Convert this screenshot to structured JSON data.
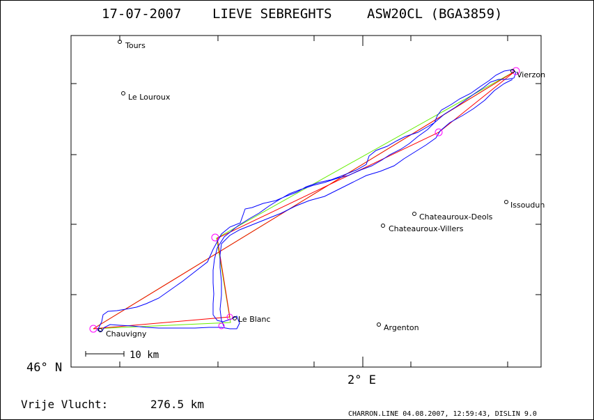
{
  "header": {
    "date": "17-07-2007",
    "pilot": "LIEVE SEBREGHTS",
    "glider": "ASW20CL (BGA3859)"
  },
  "axes": {
    "y_label": "46° N",
    "x_label": "2° E"
  },
  "scale_bar": {
    "label": "10 km"
  },
  "footer": {
    "distance_label": "Vrije Vlucht:",
    "distance_value": "276.5 km",
    "credits": "CHARRON.LINE 04.08.2007, 12:59:43, DISLIN 9.0"
  },
  "places": [
    {
      "name": "Tours"
    },
    {
      "name": "Le Louroux"
    },
    {
      "name": "Vierzon"
    },
    {
      "name": "Issoudun"
    },
    {
      "name": "Chateauroux-Deols"
    },
    {
      "name": "Chateauroux-Villers"
    },
    {
      "name": "Le Blanc"
    },
    {
      "name": "Argenton"
    },
    {
      "name": "Chauvigny"
    }
  ],
  "colors": {
    "track": "#0000ff",
    "task_line": "#ff0000",
    "alt_line": "#66ee00",
    "turnpoint": "#ff00ff",
    "text": "#000000"
  }
}
